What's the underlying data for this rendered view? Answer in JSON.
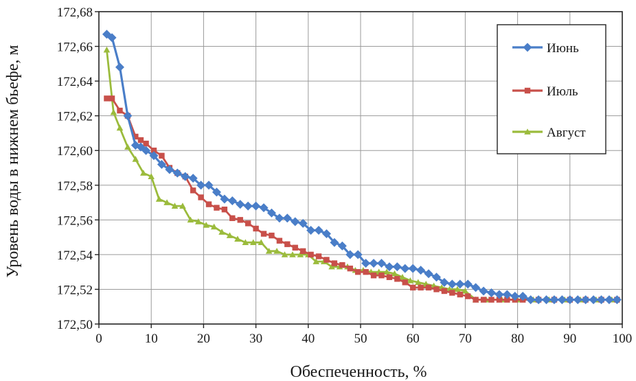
{
  "chart_data": {
    "type": "line",
    "xlabel": "Обеспеченность, %",
    "ylabel": "Уровень воды в нижнем бьефе, м",
    "xlim": [
      0,
      100
    ],
    "ylim": [
      172.5,
      172.68
    ],
    "x_ticks": [
      0,
      10,
      20,
      30,
      40,
      50,
      60,
      70,
      80,
      90,
      100
    ],
    "x_tick_labels": [
      "0",
      "10",
      "20",
      "30",
      "40",
      "50",
      "60",
      "70",
      "80",
      "90",
      "100"
    ],
    "y_ticks": [
      172.5,
      172.52,
      172.54,
      172.56,
      172.58,
      172.6,
      172.62,
      172.64,
      172.66,
      172.68
    ],
    "y_tick_labels": [
      "172,50",
      "172,52",
      "172,54",
      "172,56",
      "172,58",
      "172,60",
      "172,62",
      "172,64",
      "172,66",
      "172,68"
    ],
    "grid": true,
    "legend": "top-right",
    "series": [
      {
        "name": "Июнь",
        "color": "#4a7ec8",
        "marker": "diamond",
        "points": [
          [
            1.5,
            172.667
          ],
          [
            2.5,
            172.665
          ],
          [
            4,
            172.648
          ],
          [
            5.5,
            172.62
          ],
          [
            7,
            172.603
          ],
          [
            8,
            172.602
          ],
          [
            9,
            172.6
          ],
          [
            10.5,
            172.597
          ],
          [
            12,
            172.592
          ],
          [
            13.5,
            172.589
          ],
          [
            15,
            172.587
          ],
          [
            16.5,
            172.585
          ],
          [
            18,
            172.584
          ],
          [
            19.5,
            172.58
          ],
          [
            21,
            172.58
          ],
          [
            22.5,
            172.576
          ],
          [
            24,
            172.572
          ],
          [
            25.5,
            172.571
          ],
          [
            27,
            172.569
          ],
          [
            28.5,
            172.568
          ],
          [
            30,
            172.568
          ],
          [
            31.5,
            172.567
          ],
          [
            33,
            172.564
          ],
          [
            34.5,
            172.561
          ],
          [
            36,
            172.561
          ],
          [
            37.5,
            172.559
          ],
          [
            39,
            172.558
          ],
          [
            40.5,
            172.554
          ],
          [
            42,
            172.554
          ],
          [
            43.5,
            172.552
          ],
          [
            45,
            172.547
          ],
          [
            46.5,
            172.545
          ],
          [
            48,
            172.54
          ],
          [
            49.5,
            172.54
          ],
          [
            51,
            172.535
          ],
          [
            52.5,
            172.535
          ],
          [
            54,
            172.535
          ],
          [
            55.5,
            172.533
          ],
          [
            57,
            172.533
          ],
          [
            58.5,
            172.532
          ],
          [
            60,
            172.532
          ],
          [
            61.5,
            172.531
          ],
          [
            63,
            172.529
          ],
          [
            64.5,
            172.527
          ],
          [
            66,
            172.524
          ],
          [
            67.5,
            172.523
          ],
          [
            69,
            172.523
          ],
          [
            70.5,
            172.523
          ],
          [
            72,
            172.521
          ],
          [
            73.5,
            172.519
          ],
          [
            75,
            172.518
          ],
          [
            76.5,
            172.517
          ],
          [
            78,
            172.517
          ],
          [
            79.5,
            172.516
          ],
          [
            81,
            172.516
          ],
          [
            82.5,
            172.514
          ],
          [
            84,
            172.514
          ],
          [
            85.5,
            172.514
          ],
          [
            87,
            172.514
          ],
          [
            88.5,
            172.514
          ],
          [
            90,
            172.514
          ],
          [
            91.5,
            172.514
          ],
          [
            93,
            172.514
          ],
          [
            94.5,
            172.514
          ],
          [
            96,
            172.514
          ],
          [
            97.5,
            172.514
          ],
          [
            99,
            172.514
          ]
        ]
      },
      {
        "name": "Июль",
        "color": "#c8504a",
        "marker": "square",
        "points": [
          [
            1.5,
            172.63
          ],
          [
            2.5,
            172.63
          ],
          [
            4,
            172.623
          ],
          [
            5.5,
            172.62
          ],
          [
            7,
            172.608
          ],
          [
            8,
            172.606
          ],
          [
            9,
            172.604
          ],
          [
            10.5,
            172.6
          ],
          [
            12,
            172.597
          ],
          [
            13.5,
            172.59
          ],
          [
            15,
            172.587
          ],
          [
            16.5,
            172.585
          ],
          [
            18,
            172.577
          ],
          [
            19.5,
            172.573
          ],
          [
            21,
            172.569
          ],
          [
            22.5,
            172.567
          ],
          [
            24,
            172.566
          ],
          [
            25.5,
            172.561
          ],
          [
            27,
            172.56
          ],
          [
            28.5,
            172.558
          ],
          [
            30,
            172.555
          ],
          [
            31.5,
            172.552
          ],
          [
            33,
            172.551
          ],
          [
            34.5,
            172.548
          ],
          [
            36,
            172.546
          ],
          [
            37.5,
            172.544
          ],
          [
            39,
            172.542
          ],
          [
            40.5,
            172.54
          ],
          [
            42,
            172.539
          ],
          [
            43.5,
            172.537
          ],
          [
            45,
            172.535
          ],
          [
            46.5,
            172.534
          ],
          [
            48,
            172.532
          ],
          [
            49.5,
            172.53
          ],
          [
            51,
            172.53
          ],
          [
            52.5,
            172.528
          ],
          [
            54,
            172.528
          ],
          [
            55.5,
            172.527
          ],
          [
            57,
            172.526
          ],
          [
            58.5,
            172.524
          ],
          [
            60,
            172.521
          ],
          [
            61.5,
            172.521
          ],
          [
            63,
            172.521
          ],
          [
            64.5,
            172.52
          ],
          [
            66,
            172.519
          ],
          [
            67.5,
            172.518
          ],
          [
            69,
            172.517
          ],
          [
            70.5,
            172.516
          ],
          [
            72,
            172.514
          ],
          [
            73.5,
            172.514
          ],
          [
            75,
            172.514
          ],
          [
            76.5,
            172.514
          ],
          [
            78,
            172.514
          ],
          [
            79.5,
            172.514
          ],
          [
            81,
            172.514
          ],
          [
            84,
            172.514
          ],
          [
            87,
            172.514
          ],
          [
            90,
            172.514
          ],
          [
            93,
            172.514
          ],
          [
            96,
            172.514
          ],
          [
            99,
            172.514
          ]
        ]
      },
      {
        "name": "Август",
        "color": "#9bbb3c",
        "marker": "triangle",
        "points": [
          [
            1.5,
            172.658
          ],
          [
            2.8,
            172.622
          ],
          [
            4,
            172.613
          ],
          [
            5.5,
            172.602
          ],
          [
            7,
            172.595
          ],
          [
            8.5,
            172.587
          ],
          [
            10,
            172.585
          ],
          [
            11.5,
            172.572
          ],
          [
            13,
            172.57
          ],
          [
            14.5,
            172.568
          ],
          [
            16,
            172.568
          ],
          [
            17.5,
            172.56
          ],
          [
            19,
            172.559
          ],
          [
            20.5,
            172.557
          ],
          [
            22,
            172.556
          ],
          [
            23.5,
            172.553
          ],
          [
            25,
            172.551
          ],
          [
            26.5,
            172.549
          ],
          [
            28,
            172.547
          ],
          [
            29.5,
            172.547
          ],
          [
            31,
            172.547
          ],
          [
            32.5,
            172.542
          ],
          [
            34,
            172.542
          ],
          [
            35.5,
            172.54
          ],
          [
            37,
            172.54
          ],
          [
            38.5,
            172.54
          ],
          [
            40,
            172.54
          ],
          [
            41.5,
            172.536
          ],
          [
            43,
            172.536
          ],
          [
            44.5,
            172.533
          ],
          [
            46,
            172.533
          ],
          [
            47.5,
            172.533
          ],
          [
            49,
            172.531
          ],
          [
            50.5,
            172.531
          ],
          [
            52,
            172.53
          ],
          [
            53.5,
            172.53
          ],
          [
            55,
            172.53
          ],
          [
            56.5,
            172.529
          ],
          [
            58,
            172.527
          ],
          [
            59.5,
            172.525
          ],
          [
            61,
            172.524
          ],
          [
            62.5,
            172.523
          ],
          [
            64,
            172.522
          ],
          [
            65.5,
            172.521
          ],
          [
            67,
            172.52
          ],
          [
            68.5,
            172.52
          ],
          [
            70,
            172.519
          ],
          [
            72,
            172.514
          ],
          [
            74,
            172.514
          ],
          [
            77,
            172.514
          ],
          [
            80,
            172.514
          ],
          [
            83,
            172.514
          ],
          [
            86,
            172.514
          ],
          [
            89,
            172.514
          ],
          [
            92,
            172.514
          ],
          [
            95,
            172.514
          ],
          [
            98,
            172.514
          ]
        ]
      }
    ]
  }
}
